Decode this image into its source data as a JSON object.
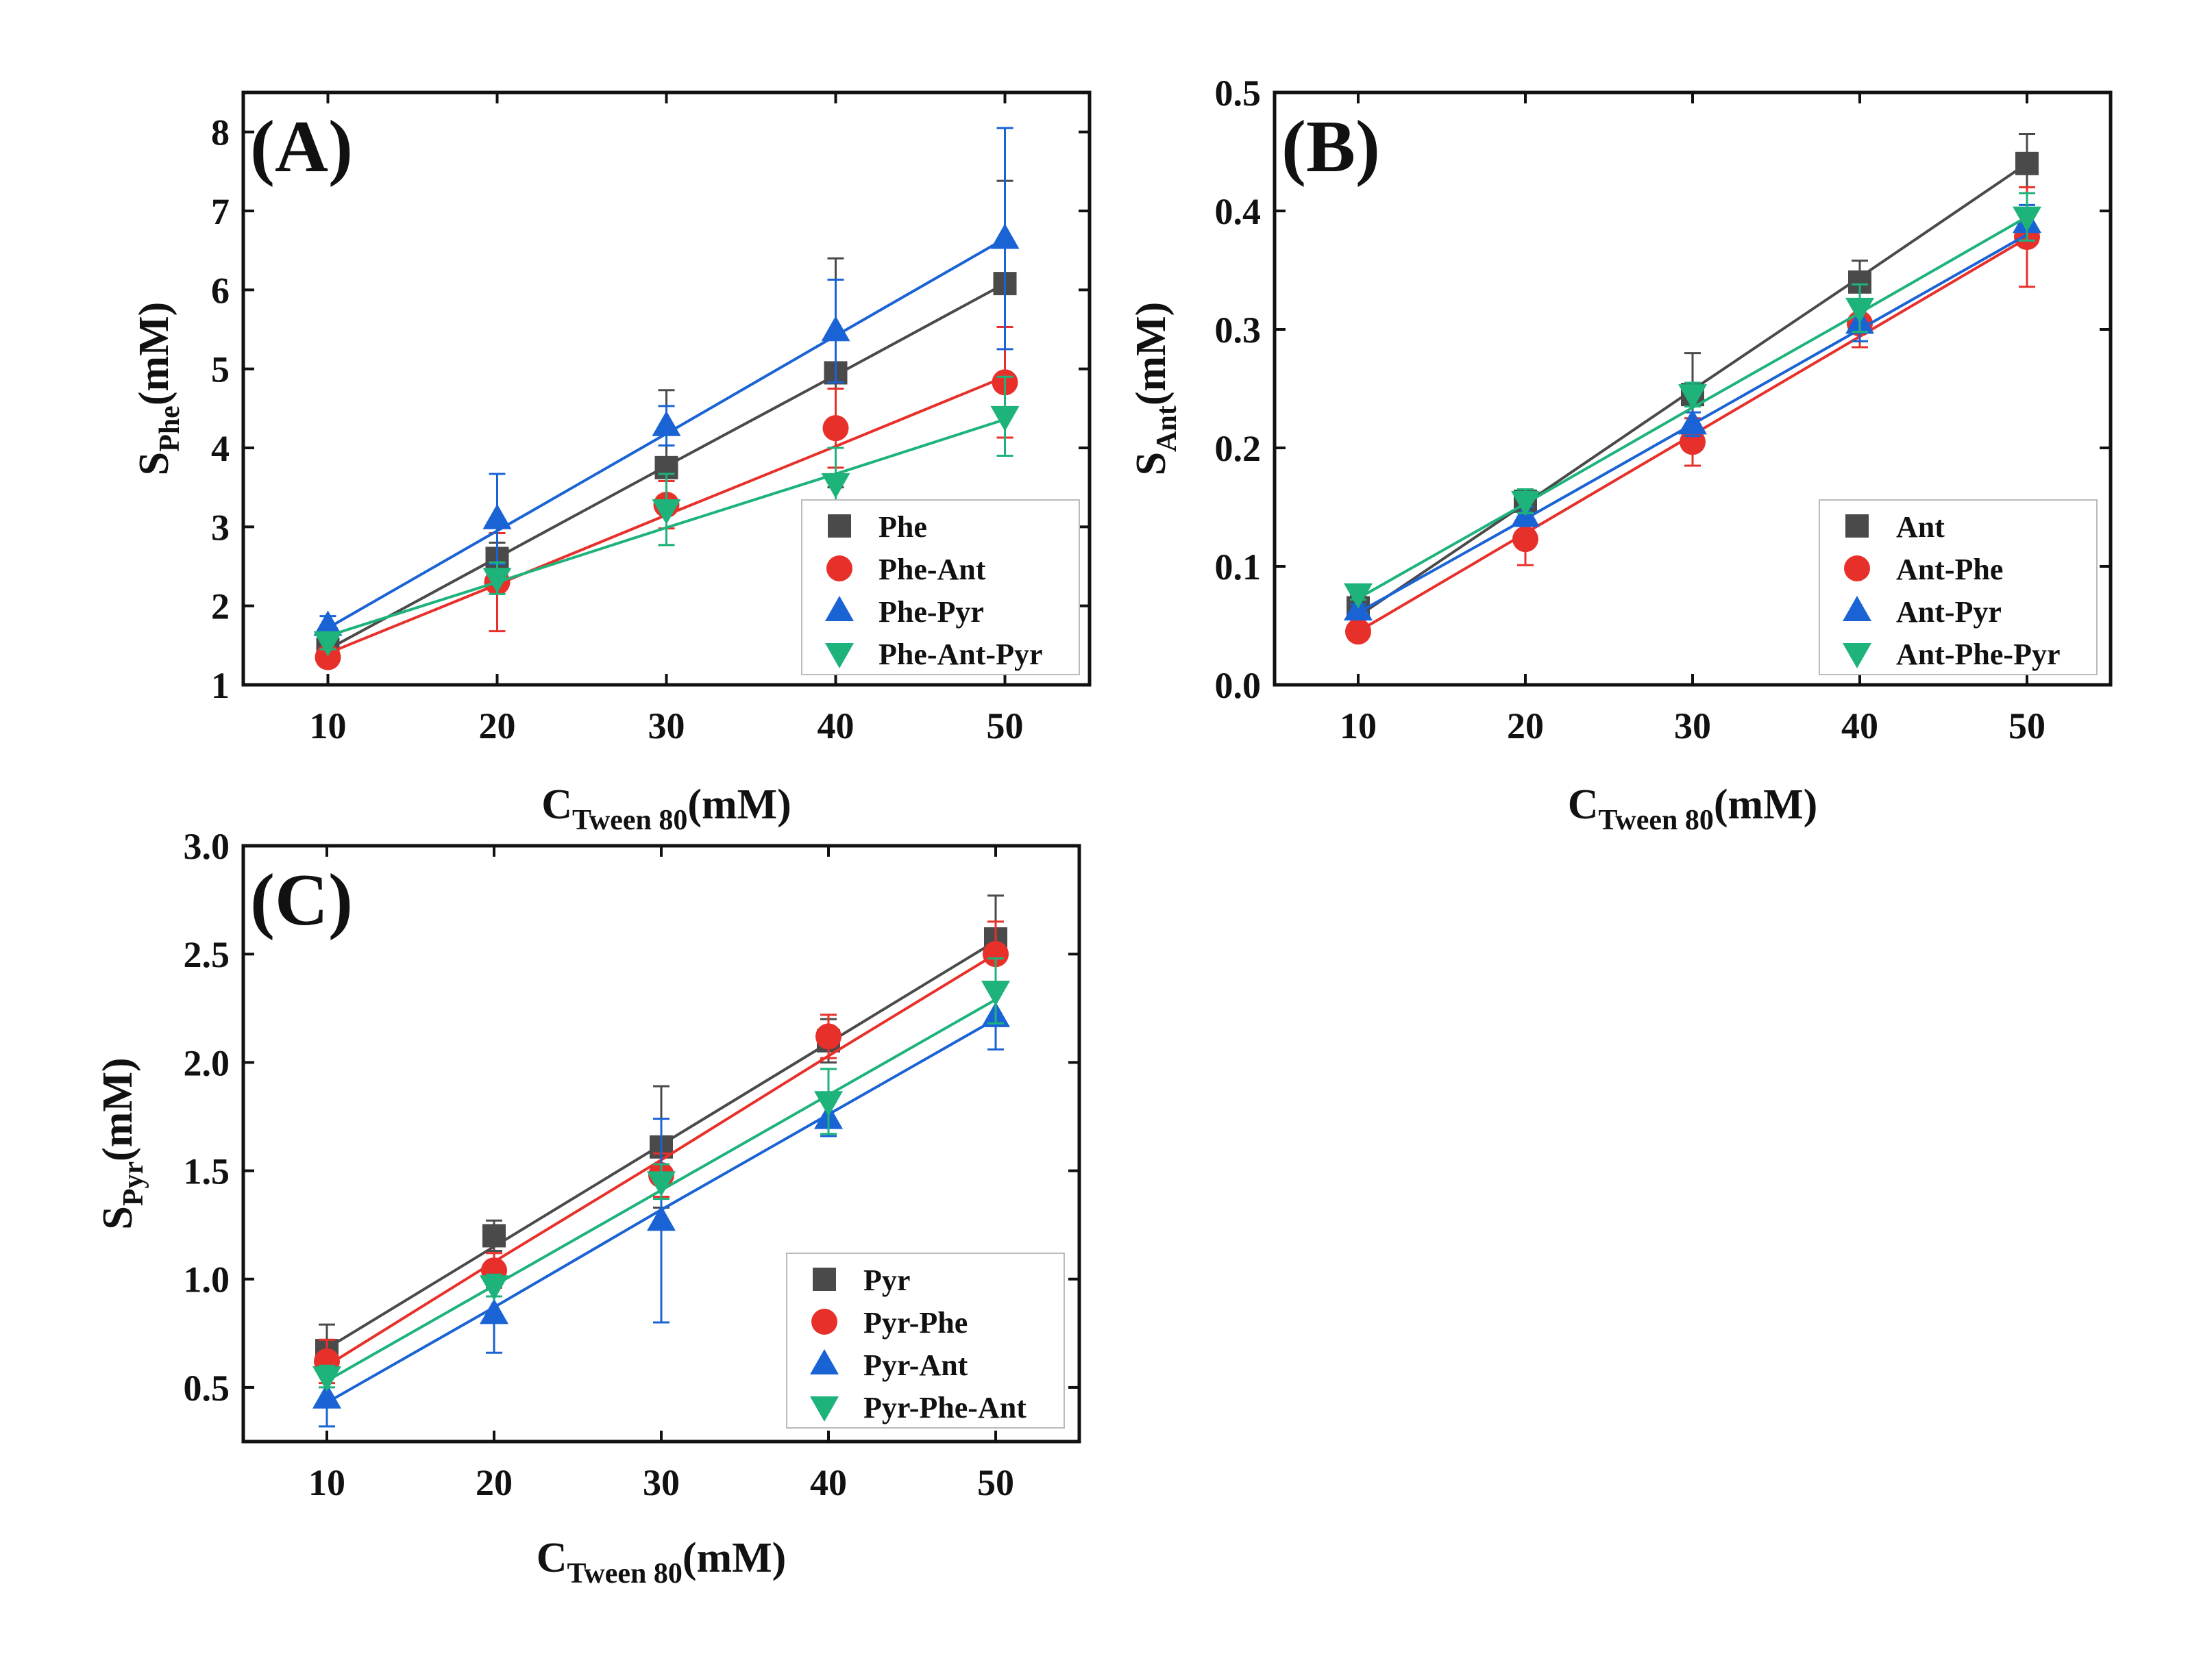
{
  "chart_data": [
    {
      "type": "line",
      "panel": "(A)",
      "xlabel": {
        "main": "C",
        "sub": "Tween 80",
        "unit": "(mM)"
      },
      "ylabel": {
        "main": "S",
        "sub": "Phe",
        "unit": "(mM)"
      },
      "x": [
        10,
        20,
        30,
        40,
        50
      ],
      "xlim": [
        5,
        55
      ],
      "ylim": [
        1,
        8.5
      ],
      "xticks": [
        "10",
        "20",
        "30",
        "40",
        "50"
      ],
      "yticks": [
        "1",
        "2",
        "3",
        "4",
        "5",
        "6",
        "7",
        "8"
      ],
      "legend_position": "bottom-right",
      "series": [
        {
          "name": "Phe",
          "marker": "square",
          "color": "#4a4a4a",
          "values": [
            1.45,
            2.6,
            3.75,
            4.95,
            6.08
          ],
          "errors": [
            0.1,
            0.2,
            0.98,
            1.45,
            1.3
          ],
          "fit": [
            1.45,
            2.61,
            3.77,
            4.92,
            6.08
          ]
        },
        {
          "name": "Phe-Ant",
          "marker": "circle",
          "color": "#e8302a",
          "values": [
            1.35,
            2.3,
            3.28,
            4.25,
            4.83
          ],
          "errors": [
            0.1,
            0.62,
            0.3,
            0.5,
            0.7
          ],
          "fit": [
            1.4,
            2.27,
            3.15,
            4.02,
            4.9
          ]
        },
        {
          "name": "Phe-Pyr",
          "marker": "triangle-up",
          "color": "#1a63d4",
          "values": [
            1.75,
            3.1,
            4.28,
            5.48,
            6.65
          ],
          "errors": [
            0.12,
            0.57,
            0.25,
            0.65,
            1.4
          ],
          "fit": [
            1.72,
            2.95,
            4.18,
            5.42,
            6.65
          ]
        },
        {
          "name": "Phe-Ant-Pyr",
          "marker": "triangle-down",
          "color": "#1db37a",
          "values": [
            1.55,
            2.35,
            3.22,
            3.55,
            4.4
          ],
          "errors": [
            0.1,
            0.2,
            0.45,
            0.45,
            0.5
          ],
          "fit": [
            1.62,
            2.3,
            2.99,
            3.67,
            4.36
          ]
        }
      ]
    },
    {
      "type": "line",
      "panel": "(B)",
      "xlabel": {
        "main": "C",
        "sub": "Tween 80",
        "unit": "(mM)"
      },
      "ylabel": {
        "main": "S",
        "sub": "Ant",
        "unit": "(mM)"
      },
      "x": [
        10,
        20,
        30,
        40,
        50
      ],
      "xlim": [
        5,
        55
      ],
      "ylim": [
        0,
        0.5
      ],
      "xticks": [
        "10",
        "20",
        "30",
        "40",
        "50"
      ],
      "yticks": [
        "0.0",
        "0.1",
        "0.2",
        "0.3",
        "0.4",
        "0.5"
      ],
      "legend_position": "bottom-right",
      "series": [
        {
          "name": "Ant",
          "marker": "square",
          "color": "#4a4a4a",
          "values": [
            0.065,
            0.155,
            0.245,
            0.34,
            0.44
          ],
          "errors": [
            0.01,
            0.01,
            0.035,
            0.018,
            0.025
          ],
          "fit": [
            0.058,
            0.153,
            0.249,
            0.344,
            0.44
          ]
        },
        {
          "name": "Ant-Phe",
          "marker": "circle",
          "color": "#e8302a",
          "values": [
            0.045,
            0.123,
            0.205,
            0.305,
            0.378
          ],
          "errors": [
            0.005,
            0.022,
            0.02,
            0.02,
            0.042
          ],
          "fit": [
            0.045,
            0.128,
            0.211,
            0.294,
            0.377
          ]
        },
        {
          "name": "Ant-Pyr",
          "marker": "triangle-up",
          "color": "#1a63d4",
          "values": [
            0.063,
            0.142,
            0.22,
            0.305,
            0.39
          ],
          "errors": [
            0.005,
            0.008,
            0.01,
            0.015,
            0.015
          ],
          "fit": [
            0.061,
            0.14,
            0.22,
            0.3,
            0.38
          ]
        },
        {
          "name": "Ant-Phe-Pyr",
          "marker": "triangle-down",
          "color": "#1db37a",
          "values": [
            0.077,
            0.155,
            0.245,
            0.318,
            0.395
          ],
          "errors": [
            0.005,
            0.01,
            0.01,
            0.02,
            0.02
          ],
          "fit": [
            0.073,
            0.153,
            0.234,
            0.314,
            0.395
          ]
        }
      ]
    },
    {
      "type": "line",
      "panel": "(C)",
      "xlabel": {
        "main": "C",
        "sub": "Tween 80",
        "unit": "(mM)"
      },
      "ylabel": {
        "main": "S",
        "sub": "Pyr",
        "unit": "(mM)"
      },
      "x": [
        10,
        20,
        30,
        40,
        50
      ],
      "xlim": [
        5,
        55
      ],
      "ylim": [
        0.25,
        3.0
      ],
      "xticks": [
        "10",
        "20",
        "30",
        "40",
        "50"
      ],
      "yticks": [
        "0.5",
        "1.0",
        "1.5",
        "2.0",
        "2.5",
        "3.0"
      ],
      "legend_position": "bottom-right",
      "series": [
        {
          "name": "Pyr",
          "marker": "square",
          "color": "#4a4a4a",
          "values": [
            0.67,
            1.2,
            1.61,
            2.1,
            2.57
          ],
          "errors": [
            0.12,
            0.07,
            0.28,
            0.1,
            0.2
          ],
          "fit": [
            0.68,
            1.15,
            1.62,
            2.09,
            2.56
          ]
        },
        {
          "name": "Pyr-Phe",
          "marker": "circle",
          "color": "#e8302a",
          "values": [
            0.62,
            1.04,
            1.48,
            2.12,
            2.5
          ],
          "errors": [
            0.1,
            0.08,
            0.1,
            0.1,
            0.15
          ],
          "fit": [
            0.6,
            1.08,
            1.55,
            2.03,
            2.5
          ]
        },
        {
          "name": "Pyr-Ant",
          "marker": "triangle-up",
          "color": "#1a63d4",
          "values": [
            0.45,
            0.84,
            1.27,
            1.74,
            2.21
          ],
          "errors": [
            0.13,
            0.18,
            0.47,
            0.08,
            0.15
          ],
          "fit": [
            0.43,
            0.87,
            1.32,
            1.76,
            2.2
          ]
        },
        {
          "name": "Pyr-Phe-Ant",
          "marker": "triangle-down",
          "color": "#1db37a",
          "values": [
            0.55,
            0.97,
            1.45,
            1.82,
            2.33
          ],
          "errors": [
            0.05,
            0.05,
            0.08,
            0.15,
            0.15
          ],
          "fit": [
            0.53,
            0.97,
            1.41,
            1.85,
            2.29
          ]
        }
      ]
    }
  ]
}
